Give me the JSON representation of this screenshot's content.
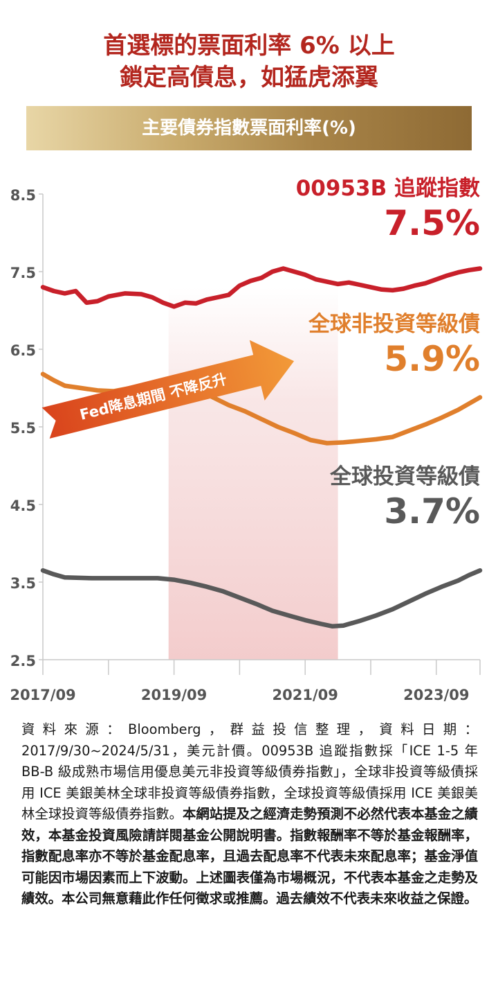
{
  "header": {
    "line1": "首選標的票面利率 6% 以上",
    "line2": "鎖定高債息，如猛虎添翼",
    "banner": "主要債券指數票面利率(%)"
  },
  "chart_data": {
    "type": "line",
    "ylim": [
      2.5,
      8.5
    ],
    "yticks": [
      "8.5",
      "7.5",
      "6.5",
      "5.5",
      "4.5",
      "3.5",
      "2.5"
    ],
    "xlim": [
      "2017-09",
      "2024-05"
    ],
    "xtick_labels": [
      "2017/09",
      "2019/09",
      "2021/09",
      "2023/09"
    ],
    "grid": false,
    "highlight": {
      "label": "Fed降息期間 不降反升",
      "start": "2019-08",
      "end": "2022-03"
    },
    "series": [
      {
        "name": "00953B 追蹤指數",
        "end_value": "7.5%",
        "color": "#c8202a",
        "points": [
          [
            "2017-09",
            7.3
          ],
          [
            "2017-11",
            7.25
          ],
          [
            "2018-01",
            7.22
          ],
          [
            "2018-03",
            7.25
          ],
          [
            "2018-05",
            7.1
          ],
          [
            "2018-07",
            7.12
          ],
          [
            "2018-09",
            7.18
          ],
          [
            "2018-12",
            7.22
          ],
          [
            "2019-03",
            7.21
          ],
          [
            "2019-05",
            7.17
          ],
          [
            "2019-07",
            7.1
          ],
          [
            "2019-09",
            7.05
          ],
          [
            "2019-11",
            7.1
          ],
          [
            "2020-01",
            7.09
          ],
          [
            "2020-03",
            7.14
          ],
          [
            "2020-05",
            7.17
          ],
          [
            "2020-07",
            7.2
          ],
          [
            "2020-09",
            7.32
          ],
          [
            "2020-11",
            7.38
          ],
          [
            "2021-01",
            7.42
          ],
          [
            "2021-03",
            7.5
          ],
          [
            "2021-05",
            7.54
          ],
          [
            "2021-07",
            7.5
          ],
          [
            "2021-09",
            7.46
          ],
          [
            "2021-11",
            7.4
          ],
          [
            "2022-01",
            7.37
          ],
          [
            "2022-03",
            7.34
          ],
          [
            "2022-05",
            7.36
          ],
          [
            "2022-07",
            7.33
          ],
          [
            "2022-09",
            7.3
          ],
          [
            "2022-11",
            7.27
          ],
          [
            "2023-01",
            7.26
          ],
          [
            "2023-03",
            7.28
          ],
          [
            "2023-05",
            7.32
          ],
          [
            "2023-07",
            7.35
          ],
          [
            "2023-09",
            7.4
          ],
          [
            "2023-11",
            7.45
          ],
          [
            "2024-01",
            7.49
          ],
          [
            "2024-03",
            7.52
          ],
          [
            "2024-05",
            7.54
          ]
        ]
      },
      {
        "name": "全球非投資等級債",
        "end_value": "5.9%",
        "color": "#e07f2c",
        "points": [
          [
            "2017-09",
            6.18
          ],
          [
            "2017-11",
            6.1
          ],
          [
            "2018-01",
            6.03
          ],
          [
            "2018-04",
            6.0
          ],
          [
            "2018-07",
            5.97
          ],
          [
            "2018-10",
            5.96
          ],
          [
            "2019-01",
            6.0
          ],
          [
            "2019-04",
            6.03
          ],
          [
            "2019-07",
            6.05
          ],
          [
            "2019-10",
            6.04
          ],
          [
            "2020-01",
            5.99
          ],
          [
            "2020-03",
            5.92
          ],
          [
            "2020-05",
            5.85
          ],
          [
            "2020-07",
            5.78
          ],
          [
            "2020-10",
            5.7
          ],
          [
            "2021-01",
            5.6
          ],
          [
            "2021-04",
            5.5
          ],
          [
            "2021-07",
            5.42
          ],
          [
            "2021-10",
            5.33
          ],
          [
            "2022-01",
            5.29
          ],
          [
            "2022-04",
            5.3
          ],
          [
            "2022-07",
            5.32
          ],
          [
            "2022-10",
            5.34
          ],
          [
            "2023-01",
            5.37
          ],
          [
            "2023-04",
            5.45
          ],
          [
            "2023-07",
            5.53
          ],
          [
            "2023-10",
            5.62
          ],
          [
            "2024-01",
            5.72
          ],
          [
            "2024-03",
            5.8
          ],
          [
            "2024-05",
            5.88
          ]
        ]
      },
      {
        "name": "全球投資等級債",
        "end_value": "3.7%",
        "color": "#595959",
        "points": [
          [
            "2017-09",
            3.65
          ],
          [
            "2017-11",
            3.6
          ],
          [
            "2018-01",
            3.56
          ],
          [
            "2018-06",
            3.55
          ],
          [
            "2019-01",
            3.55
          ],
          [
            "2019-06",
            3.55
          ],
          [
            "2019-09",
            3.53
          ],
          [
            "2019-12",
            3.49
          ],
          [
            "2020-03",
            3.44
          ],
          [
            "2020-06",
            3.38
          ],
          [
            "2020-09",
            3.3
          ],
          [
            "2020-12",
            3.22
          ],
          [
            "2021-03",
            3.13
          ],
          [
            "2021-06",
            3.07
          ],
          [
            "2021-09",
            3.01
          ],
          [
            "2021-12",
            2.96
          ],
          [
            "2022-02",
            2.93
          ],
          [
            "2022-04",
            2.94
          ],
          [
            "2022-07",
            3.0
          ],
          [
            "2022-10",
            3.07
          ],
          [
            "2023-01",
            3.15
          ],
          [
            "2023-04",
            3.25
          ],
          [
            "2023-07",
            3.35
          ],
          [
            "2023-10",
            3.44
          ],
          [
            "2024-01",
            3.52
          ],
          [
            "2024-03",
            3.59
          ],
          [
            "2024-05",
            3.65
          ]
        ]
      }
    ]
  },
  "footnote": {
    "regular": "資料來源：Bloomberg，群益投信整理，資料日期：2017/9/30~2024/5/31，美元計價。00953B 追蹤指數採「ICE 1-5 年 BB-B 級成熟市場信用優息美元非投資等級債券指數」，全球非投資等級債採用 ICE 美銀美林全球非投資等級債券指數，全球投資等級債採用 ICE 美銀美林全球投資等級債券指數。",
    "bold": "本網站提及之經濟走勢預測不必然代表本基金之績效，本基金投資風險請詳閱基金公開說明書。指數報酬率不等於基金報酬率，指數配息率亦不等於基金配息率，且過去配息率不代表未來配息率；基金淨值可能因市場因素而上下波動。上述圖表僅為市場概況，不代表本基金之走勢及績效。本公司無意藉此作任何徵求或推薦。過去績效不代表未來收益之保證。"
  }
}
